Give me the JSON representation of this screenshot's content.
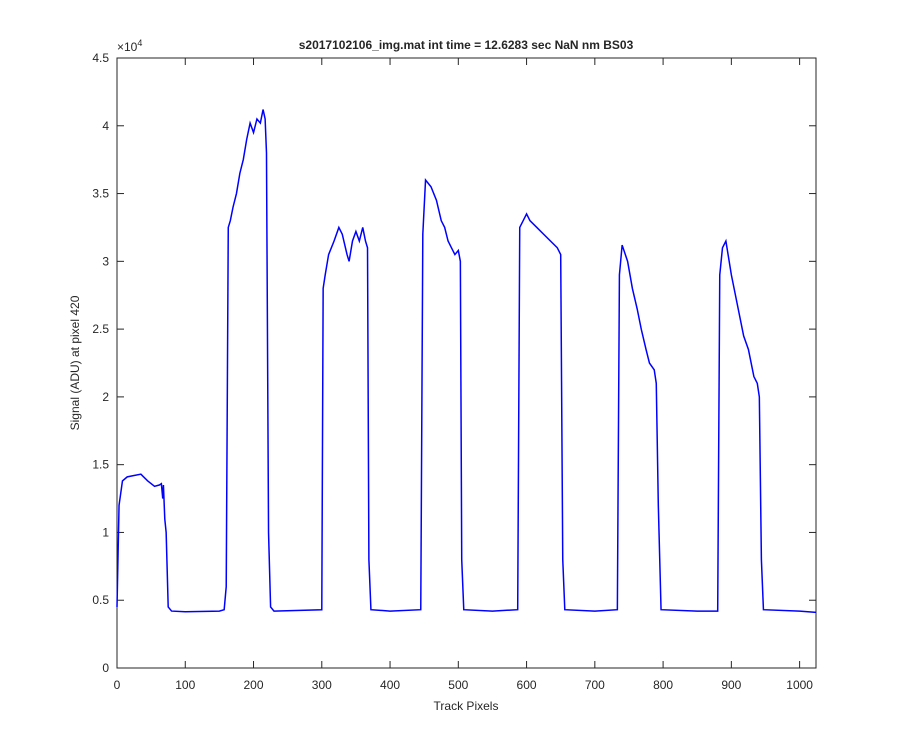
{
  "chart_data": {
    "type": "line",
    "title": "s2017102106_img.mat int time = 12.6283 sec  NaN nm BS03",
    "x_label": "Track Pixels",
    "y_label": "Signal (ADU) at pixel 420",
    "y_multiplier": "×10",
    "y_multiplier_exponent": "4",
    "xlim": [
      0,
      1024
    ],
    "xticks": [
      0,
      100,
      200,
      300,
      400,
      500,
      600,
      700,
      800,
      900,
      1000
    ],
    "ylim": [
      0,
      4.5
    ],
    "yticks": [
      0,
      0.5,
      1,
      1.5,
      2,
      2.5,
      3,
      3.5,
      4,
      4.5
    ],
    "grid": false,
    "x": [
      0,
      3,
      8,
      15,
      25,
      35,
      45,
      55,
      62,
      65,
      67,
      68,
      70,
      72,
      75,
      80,
      100,
      150,
      157,
      160,
      163,
      166,
      170,
      175,
      180,
      185,
      190,
      195,
      200,
      205,
      210,
      214,
      217,
      219,
      222,
      225,
      230,
      300,
      302,
      305,
      310,
      318,
      325,
      330,
      337,
      340,
      345,
      350,
      355,
      360,
      364,
      367,
      369,
      372,
      400,
      445,
      448,
      452,
      460,
      468,
      475,
      480,
      485,
      490,
      495,
      500,
      503,
      505,
      508,
      550,
      587,
      590,
      595,
      600,
      605,
      615,
      625,
      635,
      645,
      650,
      653,
      656,
      700,
      733,
      736,
      740,
      748,
      755,
      762,
      768,
      775,
      780,
      787,
      790,
      793,
      797,
      850,
      880,
      883,
      887,
      892,
      900,
      910,
      918,
      925,
      933,
      938,
      941,
      944,
      947,
      1000,
      1024
    ],
    "series": [
      {
        "color": "#0000ff",
        "values": [
          0.45,
          1.2,
          1.38,
          1.41,
          1.42,
          1.43,
          1.38,
          1.34,
          1.35,
          1.36,
          1.25,
          1.35,
          1.1,
          1.0,
          0.45,
          0.42,
          0.415,
          0.42,
          0.43,
          0.6,
          3.25,
          3.3,
          3.4,
          3.5,
          3.65,
          3.75,
          3.9,
          4.02,
          3.95,
          4.05,
          4.02,
          4.12,
          4.05,
          3.8,
          1.0,
          0.45,
          0.42,
          0.43,
          2.8,
          2.9,
          3.05,
          3.15,
          3.25,
          3.2,
          3.05,
          3.0,
          3.15,
          3.22,
          3.15,
          3.25,
          3.15,
          3.1,
          0.8,
          0.43,
          0.42,
          0.43,
          3.2,
          3.6,
          3.55,
          3.45,
          3.3,
          3.25,
          3.15,
          3.1,
          3.05,
          3.08,
          3.0,
          0.8,
          0.43,
          0.42,
          0.43,
          3.25,
          3.3,
          3.35,
          3.3,
          3.25,
          3.2,
          3.15,
          3.1,
          3.05,
          0.8,
          0.43,
          0.42,
          0.43,
          2.9,
          3.12,
          3.0,
          2.8,
          2.65,
          2.5,
          2.35,
          2.25,
          2.2,
          2.1,
          1.2,
          0.43,
          0.42,
          0.42,
          2.9,
          3.1,
          3.15,
          2.9,
          2.65,
          2.45,
          2.35,
          2.15,
          2.1,
          2.0,
          0.8,
          0.43,
          0.42,
          0.41
        ]
      }
    ]
  }
}
